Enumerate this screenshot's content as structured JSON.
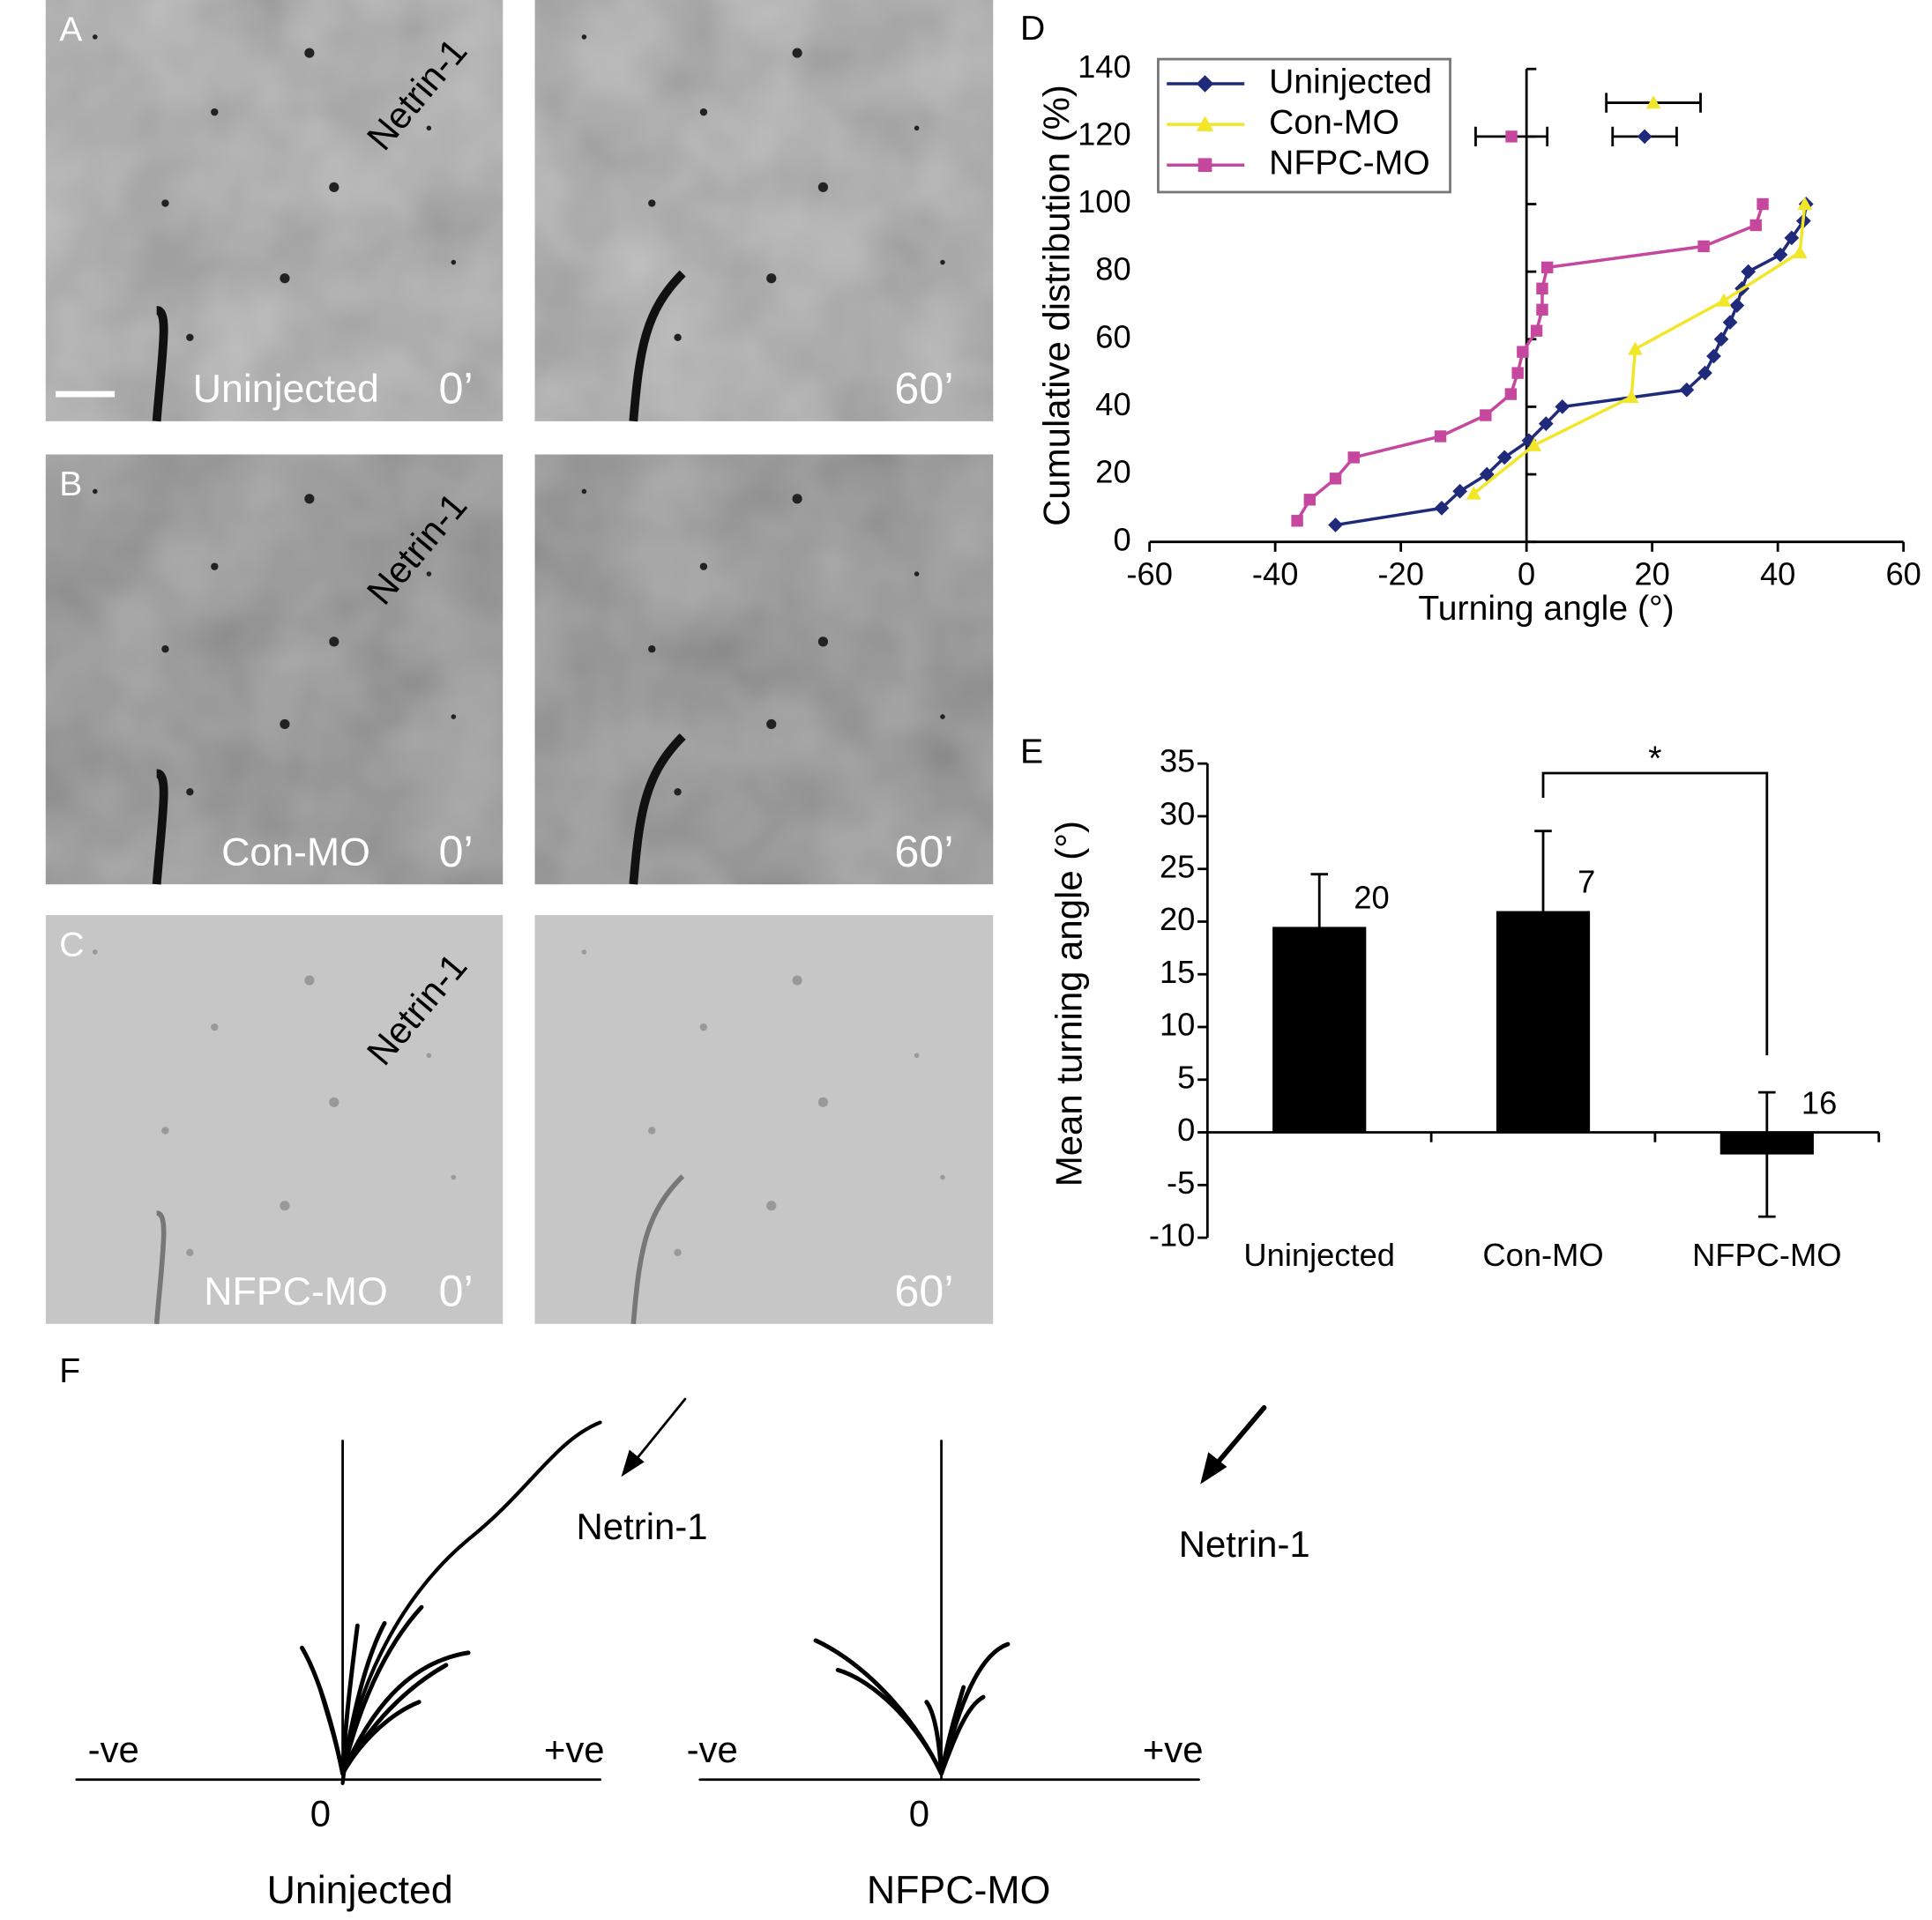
{
  "figure": {
    "micrographs": [
      {
        "letter": "A",
        "stimulus": "Netrin-1",
        "condition": "Uninjected",
        "time_start": "0’",
        "time_end": "60’"
      },
      {
        "letter": "B",
        "stimulus": "Netrin-1",
        "condition": "Con-MO",
        "time_start": "0’",
        "time_end": "60’"
      },
      {
        "letter": "C",
        "stimulus": "Netrin-1",
        "condition": "NFPC-MO",
        "time_start": "0’",
        "time_end": "60’"
      }
    ],
    "panel_f": {
      "letter": "F",
      "plots": [
        {
          "condition": "Uninjected",
          "stimulus": "Netrin-1",
          "negative": "-ve",
          "positive": "+ve",
          "origin": "0"
        },
        {
          "condition": "NFPC-MO",
          "stimulus": "Netrin-1",
          "negative": "-ve",
          "positive": "+ve",
          "origin": "0"
        }
      ]
    }
  },
  "chart_data": [
    {
      "panel": "D",
      "type": "line",
      "xlabel": "Turning angle (°)",
      "ylabel": "Cumulative distribution (%)",
      "xlim": [
        -60,
        60
      ],
      "xticks": [
        -60,
        -40,
        -20,
        0,
        20,
        40,
        60
      ],
      "ylim": [
        0,
        140
      ],
      "yticks": [
        0,
        20,
        40,
        60,
        80,
        100,
        120,
        140
      ],
      "legend": "upper left",
      "series": [
        {
          "name": "Uninjected",
          "color": "#1f2a7a",
          "marker": "diamond",
          "x": [
            -30.4,
            -13.5,
            -10.6,
            -6.3,
            -3.5,
            0.4,
            3.1,
            5.7,
            25.5,
            28.4,
            29.8,
            31,
            32.4,
            33.5,
            34.3,
            35.3,
            40.4,
            42.2,
            44.1,
            44.5
          ],
          "values": [
            5,
            10,
            15,
            20,
            25,
            30,
            35,
            40,
            45,
            50,
            55,
            60,
            65,
            70,
            75,
            80,
            85,
            90,
            95,
            100
          ],
          "mean": {
            "x": 18.8,
            "y": 120,
            "error": 5.1
          }
        },
        {
          "name": "Con-MO",
          "color": "#f2e629",
          "marker": "triangle",
          "x": [
            -8.4,
            1.2,
            16.7,
            17.3,
            31.4,
            43.5,
            44.3
          ],
          "values": [
            14.3,
            28.6,
            42.9,
            57.1,
            71.4,
            85.7,
            100
          ],
          "mean": {
            "x": 20.2,
            "y": 130,
            "error": 7.5
          }
        },
        {
          "name": "NFPC-MO",
          "color": "#c6489e",
          "marker": "square",
          "x": [
            -36.5,
            -34.5,
            -30.4,
            -27.5,
            -13.7,
            -6.5,
            -2.5,
            -1.4,
            -0.6,
            1.6,
            2.5,
            2.5,
            3.3,
            28.2,
            36.5,
            37.6
          ],
          "values": [
            6.25,
            12.5,
            18.75,
            25,
            31.25,
            37.5,
            43.75,
            50,
            56.25,
            62.5,
            68.75,
            75,
            81.25,
            87.5,
            93.75,
            100
          ],
          "mean": {
            "x": -2.4,
            "y": 120,
            "error": 5.7
          }
        }
      ]
    },
    {
      "panel": "E",
      "type": "bar",
      "ylabel": "Mean turning angle (°)",
      "categories": [
        "Uninjected",
        "Con-MO",
        "NFPC-MO"
      ],
      "values": [
        19.5,
        21,
        -2.1
      ],
      "errors": [
        5,
        7.6,
        5.9
      ],
      "n": [
        20,
        7,
        16
      ],
      "color": "#000000",
      "ylim": [
        -10,
        35
      ],
      "yticks": [
        -10,
        -5,
        0,
        5,
        10,
        15,
        20,
        25,
        30,
        35
      ],
      "annotation": "*"
    }
  ]
}
